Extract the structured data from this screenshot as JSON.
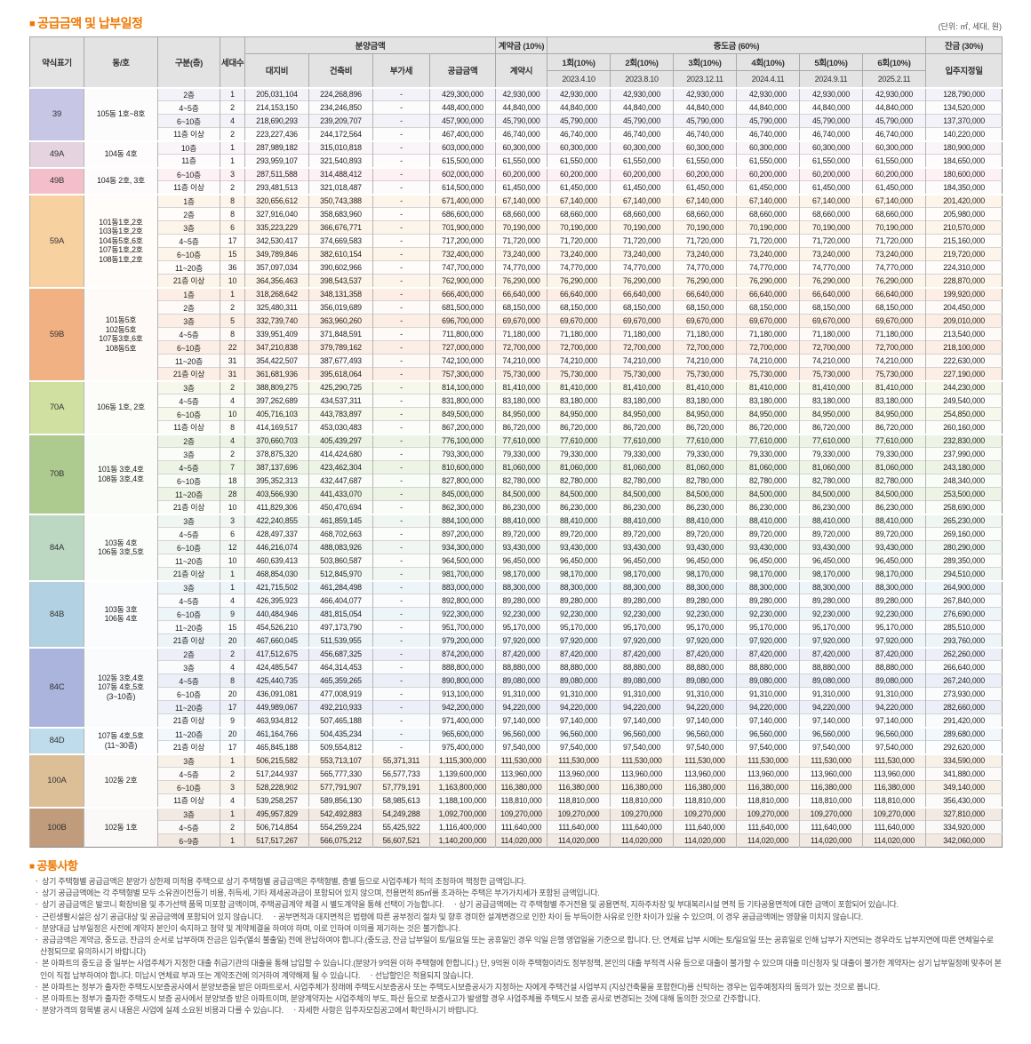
{
  "title": "공급금액 및 납부일정",
  "bullet": "■",
  "unit_note": "(단위: ㎡, 세대, 원)",
  "table": {
    "headers": {
      "abbr": "약식표기",
      "dong_ho": "동/호",
      "floor": "구분(층)",
      "households": "세대수",
      "sale_group": "분양금액",
      "land": "대지비",
      "construction": "건축비",
      "vat": "부가세",
      "supply": "공급금액",
      "down_group": "계약금 (10%)",
      "down_when": "계약시",
      "interim_group": "중도금 (60%)",
      "interim_cols": [
        {
          "label": "1회(10%)",
          "date": "2023.4.10"
        },
        {
          "label": "2회(10%)",
          "date": "2023.8.10"
        },
        {
          "label": "3회(10%)",
          "date": "2023.12.11"
        },
        {
          "label": "4회(10%)",
          "date": "2024.4.11"
        },
        {
          "label": "5회(10%)",
          "date": "2024.9.11"
        },
        {
          "label": "6회(10%)",
          "date": "2025.2.11"
        }
      ],
      "balance_group": "잔금 (30%)",
      "balance_when": "입주지정일"
    },
    "row_fields": [
      "floor",
      "households",
      "land_cost",
      "construction_cost",
      "vat",
      "supply_price",
      "installment_10pct",
      "balance_30pct"
    ],
    "groups": [
      {
        "abbr": "39",
        "color": "#c7c6e5",
        "dong_ho": "105동 1호~8호",
        "rows": [
          [
            "2층",
            "1",
            "205,031,104",
            "224,268,896",
            "-",
            "429,300,000",
            "42,930,000",
            "128,790,000"
          ],
          [
            "4~5층",
            "2",
            "214,153,150",
            "234,246,850",
            "-",
            "448,400,000",
            "44,840,000",
            "134,520,000"
          ],
          [
            "6~10층",
            "4",
            "218,690,293",
            "239,209,707",
            "-",
            "457,900,000",
            "45,790,000",
            "137,370,000"
          ],
          [
            "11층 이상",
            "2",
            "223,227,436",
            "244,172,564",
            "-",
            "467,400,000",
            "46,740,000",
            "140,220,000"
          ]
        ]
      },
      {
        "abbr": "49A",
        "color": "#e6d3e0",
        "dong_ho": "104동 4호",
        "rows": [
          [
            "10층",
            "1",
            "287,989,182",
            "315,010,818",
            "-",
            "603,000,000",
            "60,300,000",
            "180,900,000"
          ],
          [
            "11층",
            "1",
            "293,959,107",
            "321,540,893",
            "-",
            "615,500,000",
            "61,550,000",
            "184,650,000"
          ]
        ]
      },
      {
        "abbr": "49B",
        "color": "#f4bfca",
        "dong_ho": "104동 2호, 3호",
        "rows": [
          [
            "6~10층",
            "3",
            "287,511,588",
            "314,488,412",
            "-",
            "602,000,000",
            "60,200,000",
            "180,600,000"
          ],
          [
            "11층 이상",
            "2",
            "293,481,513",
            "321,018,487",
            "-",
            "614,500,000",
            "61,450,000",
            "184,350,000"
          ]
        ]
      },
      {
        "abbr": "59A",
        "color": "#f8d1a0",
        "dong_ho": "101동1호,2호\n103동1호,2호\n104동5호,6호\n107동1호,2호\n108동1호,2호",
        "rows": [
          [
            "1층",
            "8",
            "320,656,612",
            "350,743,388",
            "-",
            "671,400,000",
            "67,140,000",
            "201,420,000"
          ],
          [
            "2층",
            "8",
            "327,916,040",
            "358,683,960",
            "-",
            "686,600,000",
            "68,660,000",
            "205,980,000"
          ],
          [
            "3층",
            "6",
            "335,223,229",
            "366,676,771",
            "-",
            "701,900,000",
            "70,190,000",
            "210,570,000"
          ],
          [
            "4~5층",
            "17",
            "342,530,417",
            "374,669,583",
            "-",
            "717,200,000",
            "71,720,000",
            "215,160,000"
          ],
          [
            "6~10층",
            "15",
            "349,789,846",
            "382,610,154",
            "-",
            "732,400,000",
            "73,240,000",
            "219,720,000"
          ],
          [
            "11~20층",
            "36",
            "357,097,034",
            "390,602,966",
            "-",
            "747,700,000",
            "74,770,000",
            "224,310,000"
          ],
          [
            "21층 이상",
            "10",
            "364,356,463",
            "398,543,537",
            "-",
            "762,900,000",
            "76,290,000",
            "228,870,000"
          ]
        ]
      },
      {
        "abbr": "59B",
        "color": "#f1b183",
        "dong_ho": "101동5호\n102동5호\n107동3호,6호\n108동5호",
        "rows": [
          [
            "1층",
            "1",
            "318,268,642",
            "348,131,358",
            "-",
            "666,400,000",
            "66,640,000",
            "199,920,000"
          ],
          [
            "2층",
            "2",
            "325,480,311",
            "356,019,689",
            "-",
            "681,500,000",
            "68,150,000",
            "204,450,000"
          ],
          [
            "3층",
            "5",
            "332,739,740",
            "363,960,260",
            "-",
            "696,700,000",
            "69,670,000",
            "209,010,000"
          ],
          [
            "4~5층",
            "8",
            "339,951,409",
            "371,848,591",
            "-",
            "711,800,000",
            "71,180,000",
            "213,540,000"
          ],
          [
            "6~10층",
            "22",
            "347,210,838",
            "379,789,162",
            "-",
            "727,000,000",
            "72,700,000",
            "218,100,000"
          ],
          [
            "11~20층",
            "31",
            "354,422,507",
            "387,677,493",
            "-",
            "742,100,000",
            "74,210,000",
            "222,630,000"
          ],
          [
            "21층 이상",
            "31",
            "361,681,936",
            "395,618,064",
            "-",
            "757,300,000",
            "75,730,000",
            "227,190,000"
          ]
        ]
      },
      {
        "abbr": "70A",
        "color": "#d0e0a0",
        "dong_ho": "106동 1호, 2호",
        "rows": [
          [
            "3층",
            "2",
            "388,809,275",
            "425,290,725",
            "-",
            "814,100,000",
            "81,410,000",
            "244,230,000"
          ],
          [
            "4~5층",
            "4",
            "397,262,689",
            "434,537,311",
            "-",
            "831,800,000",
            "83,180,000",
            "249,540,000"
          ],
          [
            "6~10층",
            "10",
            "405,716,103",
            "443,783,897",
            "-",
            "849,500,000",
            "84,950,000",
            "254,850,000"
          ],
          [
            "11층 이상",
            "8",
            "414,169,517",
            "453,030,483",
            "-",
            "867,200,000",
            "86,720,000",
            "260,160,000"
          ]
        ]
      },
      {
        "abbr": "70B",
        "color": "#aecb8f",
        "dong_ho": "101동 3호,4호\n108동 3호,4호",
        "rows": [
          [
            "2층",
            "4",
            "370,660,703",
            "405,439,297",
            "-",
            "776,100,000",
            "77,610,000",
            "232,830,000"
          ],
          [
            "3층",
            "2",
            "378,875,320",
            "414,424,680",
            "-",
            "793,300,000",
            "79,330,000",
            "237,990,000"
          ],
          [
            "4~5층",
            "7",
            "387,137,696",
            "423,462,304",
            "-",
            "810,600,000",
            "81,060,000",
            "243,180,000"
          ],
          [
            "6~10층",
            "18",
            "395,352,313",
            "432,447,687",
            "-",
            "827,800,000",
            "82,780,000",
            "248,340,000"
          ],
          [
            "11~20층",
            "28",
            "403,566,930",
            "441,433,070",
            "-",
            "845,000,000",
            "84,500,000",
            "253,500,000"
          ],
          [
            "21층 이상",
            "10",
            "411,829,306",
            "450,470,694",
            "-",
            "862,300,000",
            "86,230,000",
            "258,690,000"
          ]
        ]
      },
      {
        "abbr": "84A",
        "color": "#bcd8c3",
        "dong_ho": "103동 4호\n106동 3호,5호",
        "rows": [
          [
            "3층",
            "3",
            "422,240,855",
            "461,859,145",
            "-",
            "884,100,000",
            "88,410,000",
            "265,230,000"
          ],
          [
            "4~5층",
            "6",
            "428,497,337",
            "468,702,663",
            "-",
            "897,200,000",
            "89,720,000",
            "269,160,000"
          ],
          [
            "6~10층",
            "12",
            "446,216,074",
            "488,083,926",
            "-",
            "934,300,000",
            "93,430,000",
            "280,290,000"
          ],
          [
            "11~20층",
            "10",
            "460,639,413",
            "503,860,587",
            "-",
            "964,500,000",
            "96,450,000",
            "289,350,000"
          ],
          [
            "21층 이상",
            "1",
            "468,854,030",
            "512,845,970",
            "-",
            "981,700,000",
            "98,170,000",
            "294,510,000"
          ]
        ]
      },
      {
        "abbr": "84B",
        "color": "#b2d2e3",
        "dong_ho": "103동 3호\n106동 4호",
        "rows": [
          [
            "3층",
            "1",
            "421,715,502",
            "461,284,498",
            "-",
            "883,000,000",
            "88,300,000",
            "264,900,000"
          ],
          [
            "4~5층",
            "4",
            "426,395,923",
            "466,404,077",
            "-",
            "892,800,000",
            "89,280,000",
            "267,840,000"
          ],
          [
            "6~10층",
            "9",
            "440,484,946",
            "481,815,054",
            "-",
            "922,300,000",
            "92,230,000",
            "276,690,000"
          ],
          [
            "11~20층",
            "15",
            "454,526,210",
            "497,173,790",
            "-",
            "951,700,000",
            "95,170,000",
            "285,510,000"
          ],
          [
            "21층 이상",
            "20",
            "467,660,045",
            "511,539,955",
            "-",
            "979,200,000",
            "97,920,000",
            "293,760,000"
          ]
        ]
      },
      {
        "abbr": "84C",
        "color": "#aab4dc",
        "dong_ho": "102동 3호,4호\n107동 4호,5호\n(3~10층)",
        "rows": [
          [
            "2층",
            "2",
            "417,512,675",
            "456,687,325",
            "-",
            "874,200,000",
            "87,420,000",
            "262,260,000"
          ],
          [
            "3층",
            "4",
            "424,485,547",
            "464,314,453",
            "-",
            "888,800,000",
            "88,880,000",
            "266,640,000"
          ],
          [
            "4~5층",
            "8",
            "425,440,735",
            "465,359,265",
            "-",
            "890,800,000",
            "89,080,000",
            "267,240,000"
          ],
          [
            "6~10층",
            "20",
            "436,091,081",
            "477,008,919",
            "-",
            "913,100,000",
            "91,310,000",
            "273,930,000"
          ],
          [
            "11~20층",
            "17",
            "449,989,067",
            "492,210,933",
            "-",
            "942,200,000",
            "94,220,000",
            "282,660,000"
          ],
          [
            "21층 이상",
            "9",
            "463,934,812",
            "507,465,188",
            "-",
            "971,400,000",
            "97,140,000",
            "291,420,000"
          ]
        ]
      },
      {
        "abbr": "84D",
        "color": "#bedcec",
        "dong_ho": "107동 4호,5호\n(11~30층)",
        "rows": [
          [
            "11~20층",
            "20",
            "461,164,766",
            "504,435,234",
            "-",
            "965,600,000",
            "96,560,000",
            "289,680,000"
          ],
          [
            "21층 이상",
            "17",
            "465,845,188",
            "509,554,812",
            "-",
            "975,400,000",
            "97,540,000",
            "292,620,000"
          ]
        ]
      },
      {
        "abbr": "100A",
        "color": "#dcbf97",
        "dong_ho": "102동 2호",
        "rows": [
          [
            "3층",
            "1",
            "506,215,582",
            "553,713,107",
            "55,371,311",
            "1,115,300,000",
            "111,530,000",
            "334,590,000"
          ],
          [
            "4~5층",
            "2",
            "517,244,937",
            "565,777,330",
            "56,577,733",
            "1,139,600,000",
            "113,960,000",
            "341,880,000"
          ],
          [
            "6~10층",
            "3",
            "528,228,902",
            "577,791,907",
            "57,779,191",
            "1,163,800,000",
            "116,380,000",
            "349,140,000"
          ],
          [
            "11층 이상",
            "4",
            "539,258,257",
            "589,856,130",
            "58,985,613",
            "1,188,100,000",
            "118,810,000",
            "356,430,000"
          ]
        ]
      },
      {
        "abbr": "100B",
        "color": "#c09c7c",
        "dong_ho": "102동 1호",
        "rows": [
          [
            "3층",
            "1",
            "495,957,829",
            "542,492,883",
            "54,249,288",
            "1,092,700,000",
            "109,270,000",
            "327,810,000"
          ],
          [
            "4~5층",
            "2",
            "506,714,854",
            "554,259,224",
            "55,425,922",
            "1,116,400,000",
            "111,640,000",
            "334,920,000"
          ],
          [
            "6~9층",
            "1",
            "517,517,267",
            "566,075,212",
            "56,607,521",
            "1,140,200,000",
            "114,020,000",
            "342,060,000"
          ]
        ]
      }
    ]
  },
  "notes_title": "공통사항",
  "note_bullet": "ㆍ",
  "notes": [
    "상기 주택형별 공급금액은 분양가 상한제 미적용 주택으로 상기 주택형별 공급금액은 주택형별, 층별 등으로 사업주체가 적의 조정하여 책정한 금액입니다.",
    "상기 공급금액에는 각 주택형별 모두 소유권이전등기 비용, 취득세, 기타 제세공과금이 포함되어 있지 않으며, 전용면적 85㎡를 초과하는 주택은 부가가치세가 포함된 금액입니다.",
    "상기 공급금액은 발코니 확장비용 및 추가선택 품목 미포함 금액이며, 주택공급계약 체결 시 별도계약을 통해 선택이 가능합니다.　ㆍ상기 공급금액에는 각 주택형별 주거전용 및 공용면적, 지하주차장 및 부대복리시설 면적 등 기타공용면적에 대한 금액이 포함되어 있습니다.",
    "근린생활시설은 상기 공급대상 및 공급금액에 포함되어 있지 않습니다.　ㆍ공부면적과 대지면적은 법령에 따른 공부정리 절차 및 향후 경미한 설계변경으로 인한 차이 등 부득이한 사유로 인한 차이가 있을 수 있으며, 이 경우 공급금액에는 영향을 미치지 않습니다.",
    "분양대금 납부일정은 사전에 계약자 본인이 숙지하고 청약 및 계약체결을 하여야 하며, 이로 인하여 이의를 제기하는 것은 불가합니다.",
    "공급금액은 계약금, 중도금, 잔금의 순서로 납부하며 잔금은 입주(열쇠 불출일) 전에 완납하여야 합니다.(중도금, 잔금 납부일이 토/일요일 또는 공휴일인 경우 익일 은행 영업일을 기준으로 합니다. 단, 연체료 납부 시에는 토/일요일 또는 공휴일로 인해 납부가 지연되는 경우라도 납부지연에 따른 연체일수로 산정되므로 유의하시기 바랍니다)",
    "본 아파트의 중도금 중 일부는 사업주체가 지정한 대출 취급기관의 대출을 통해 납입할 수 있습니다.(분양가 9억원 이하 주택형에 한합니다.) 단, 9억원 이하 주택형이라도 정부정책, 본인의 대출 부적격 사유 등으로 대출이 불가할 수 있으며 대출 미신청자 및 대출이 불가한 계약자는 상기 납부일정에 맞추어 본인이 직접 납부하여야 합니다. 미납시 연체료 부과 또는 계약조건에 의거하여 계약해제 될 수 있습니다.　ㆍ선납할인은 적용되지 않습니다.",
    "본 아파트는 정부가 출자한 주택도시보증공사에서 분양보증을 받은 아파트로서, 사업주체가 장래에 주택도시보증공사 또는 주택도시보증공사가 지정하는 자에게 주택건설 사업부지 (지상건축물을 포함한다)를 신탁하는 경우는 입주예정자의 동의가 있는 것으로 봅니다.",
    "본 아파트는 정부가 출자한 주택도시 보증 공사에서 분양보증 받은 아파트이며, 분양계약자는 사업주체의 부도, 파산 등으로 보증사고가 발생할 경우 사업주체를 주택도시 보증 공사로 변경되는 것에 대해 동의한 것으로 간주합니다.",
    "분양가격의 항목별 공시 내용은 사업에 실제 소요된 비용과 다를 수 있습니다.　ㆍ자세한 사항은 입주자모집공고에서 확인하시기 바랍니다."
  ]
}
